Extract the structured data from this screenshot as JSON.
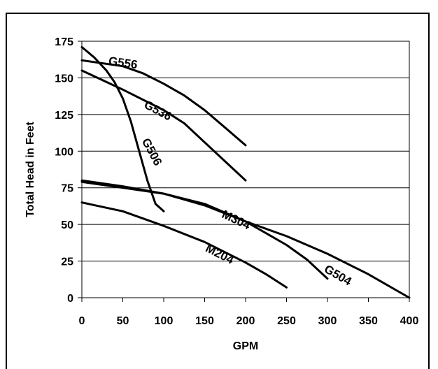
{
  "chart_data": {
    "type": "line",
    "title": "",
    "xlabel": "GPM",
    "ylabel": "Total Head in Feet",
    "xlim": [
      0,
      400
    ],
    "ylim": [
      0,
      175
    ],
    "xticks": [
      "0",
      "50",
      "100",
      "150",
      "200",
      "250",
      "300",
      "350",
      "400"
    ],
    "yticks": [
      "0",
      "25",
      "50",
      "75",
      "100",
      "125",
      "150",
      "175"
    ],
    "grid": "horizontal",
    "line_color": "#000000",
    "series": [
      {
        "name": "G556",
        "label_at": [
          32,
          159
        ],
        "label_angle": 8,
        "points": [
          [
            0,
            162
          ],
          [
            50,
            158
          ],
          [
            75,
            153
          ],
          [
            100,
            146
          ],
          [
            125,
            138
          ],
          [
            150,
            128
          ],
          [
            175,
            116
          ],
          [
            200,
            104
          ]
        ]
      },
      {
        "name": "G536",
        "label_at": [
          75,
          130
        ],
        "label_angle": 28,
        "points": [
          [
            0,
            155
          ],
          [
            50,
            142
          ],
          [
            100,
            128
          ],
          [
            125,
            119
          ],
          [
            150,
            106
          ],
          [
            175,
            93
          ],
          [
            200,
            80
          ]
        ]
      },
      {
        "name": "G506",
        "label_at": [
          73,
          107
        ],
        "label_angle": 62,
        "points": [
          [
            0,
            171
          ],
          [
            15,
            164
          ],
          [
            30,
            155
          ],
          [
            40,
            147
          ],
          [
            50,
            136
          ],
          [
            60,
            120
          ],
          [
            70,
            100
          ],
          [
            80,
            80
          ],
          [
            90,
            64
          ],
          [
            100,
            59
          ]
        ]
      },
      {
        "name": "M304",
        "label_at": [
          170,
          55
        ],
        "label_angle": 25,
        "points": [
          [
            0,
            79
          ],
          [
            50,
            75
          ],
          [
            100,
            71
          ],
          [
            150,
            63
          ],
          [
            200,
            52
          ],
          [
            250,
            42
          ],
          [
            300,
            30
          ],
          [
            350,
            16
          ],
          [
            400,
            0
          ]
        ]
      },
      {
        "name": "G504",
        "label_at": [
          295,
          18
        ],
        "label_angle": 30,
        "points": [
          [
            0,
            80
          ],
          [
            50,
            76
          ],
          [
            100,
            71
          ],
          [
            150,
            64
          ],
          [
            200,
            52
          ],
          [
            250,
            36
          ],
          [
            275,
            26
          ],
          [
            300,
            13
          ]
        ]
      },
      {
        "name": "M204",
        "label_at": [
          150,
          32
        ],
        "label_angle": 27,
        "points": [
          [
            0,
            65
          ],
          [
            50,
            59
          ],
          [
            100,
            49
          ],
          [
            150,
            38
          ],
          [
            200,
            24
          ],
          [
            225,
            16
          ],
          [
            250,
            7
          ]
        ]
      }
    ]
  }
}
